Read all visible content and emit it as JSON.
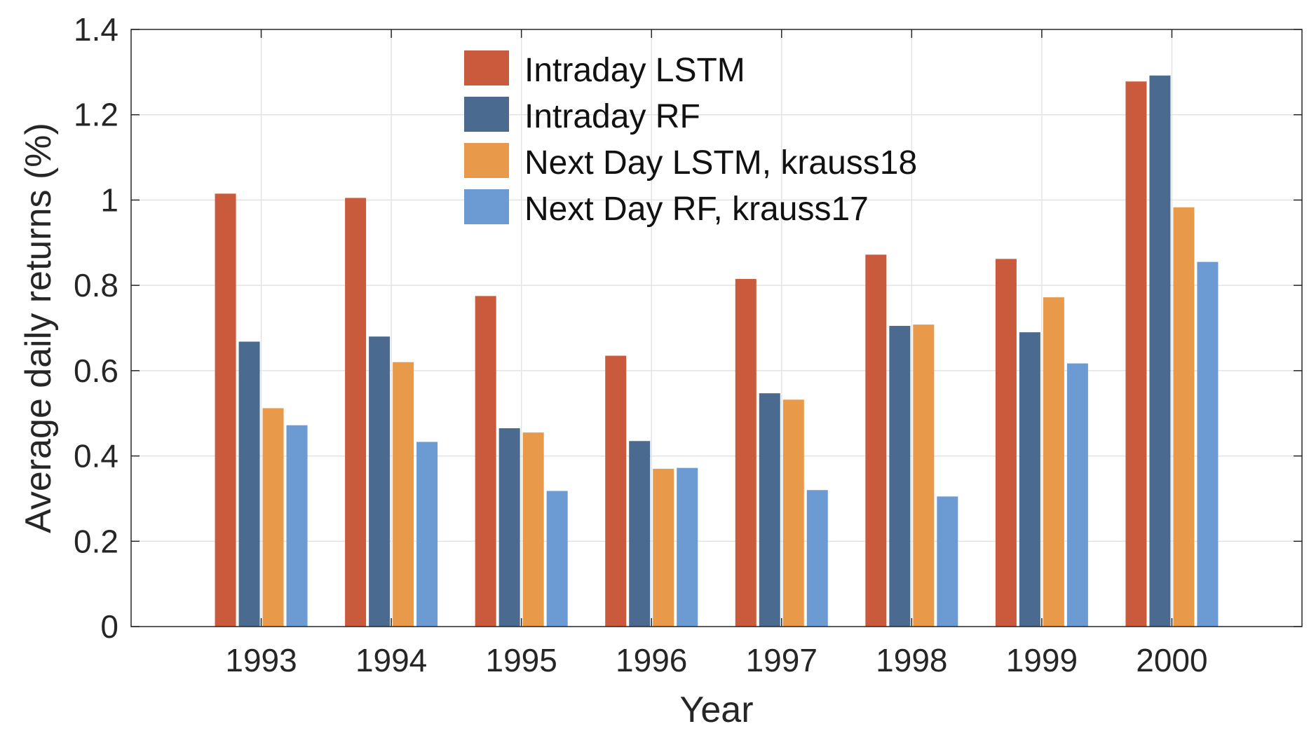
{
  "chart_data": {
    "type": "bar",
    "title": "",
    "xlabel": "Year",
    "ylabel": "Average daily returns (%)",
    "categories": [
      "1993",
      "1994",
      "1995",
      "1996",
      "1997",
      "1998",
      "1999",
      "2000"
    ],
    "ylim": [
      0,
      1.4
    ],
    "yticks": [
      "0",
      "0.2",
      "0.4",
      "0.6",
      "0.8",
      "1",
      "1.2",
      "1.4"
    ],
    "grid": true,
    "legend_position": "top-center",
    "series": [
      {
        "name": "Intraday LSTM",
        "color": "#c95a3b",
        "values": [
          1.015,
          1.005,
          0.775,
          0.635,
          0.815,
          0.872,
          0.862,
          1.278
        ]
      },
      {
        "name": "Intraday RF",
        "color": "#4a6a90",
        "values": [
          0.668,
          0.68,
          0.465,
          0.435,
          0.547,
          0.705,
          0.69,
          1.292
        ]
      },
      {
        "name": "Next Day LSTM, krauss18",
        "color": "#e8994a",
        "values": [
          0.512,
          0.62,
          0.455,
          0.37,
          0.532,
          0.708,
          0.772,
          0.983
        ]
      },
      {
        "name": "Next Day RF, krauss17",
        "color": "#6b9bd2",
        "values": [
          0.472,
          0.433,
          0.318,
          0.372,
          0.32,
          0.305,
          0.617,
          0.855
        ]
      }
    ]
  }
}
